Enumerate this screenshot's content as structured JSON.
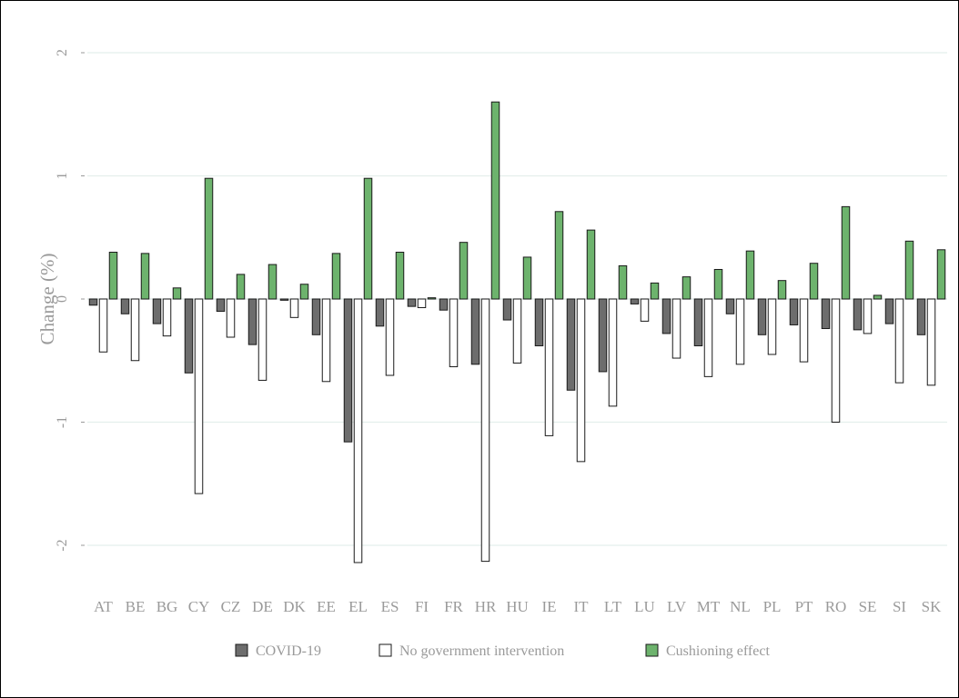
{
  "chart_data": {
    "type": "bar",
    "ylabel": "Change (%)",
    "ylim": [
      -2.3,
      2.0
    ],
    "yticks": [
      2,
      1,
      0,
      -1,
      -2
    ],
    "grid": true,
    "legend_position": "bottom",
    "categories": [
      "AT",
      "BE",
      "BG",
      "CY",
      "CZ",
      "DE",
      "DK",
      "EE",
      "EL",
      "ES",
      "FI",
      "FR",
      "HR",
      "HU",
      "IE",
      "IT",
      "LT",
      "LU",
      "LV",
      "MT",
      "NL",
      "PL",
      "PT",
      "RO",
      "SE",
      "SI",
      "SK"
    ],
    "series": [
      {
        "name": "COVID-19",
        "color": "#6d6d6d",
        "values": [
          -0.05,
          -0.12,
          -0.2,
          -0.6,
          -0.1,
          -0.37,
          -0.01,
          -0.29,
          -1.16,
          -0.22,
          -0.06,
          -0.09,
          -0.53,
          -0.17,
          -0.38,
          -0.74,
          -0.59,
          -0.04,
          -0.28,
          -0.38,
          -0.12,
          -0.29,
          -0.21,
          -0.24,
          -0.25,
          -0.2,
          -0.29
        ]
      },
      {
        "name": "No government intervention",
        "color": "#ffffff",
        "values": [
          -0.43,
          -0.5,
          -0.3,
          -1.58,
          -0.31,
          -0.66,
          -0.15,
          -0.67,
          -2.14,
          -0.62,
          -0.07,
          -0.55,
          -2.13,
          -0.52,
          -1.11,
          -1.32,
          -0.87,
          -0.18,
          -0.48,
          -0.63,
          -0.53,
          -0.45,
          -0.51,
          -1.0,
          -0.28,
          -0.68,
          -0.7
        ]
      },
      {
        "name": "Cushioning effect",
        "color": "#6db36d",
        "values": [
          0.38,
          0.37,
          0.09,
          0.98,
          0.2,
          0.28,
          0.12,
          0.37,
          0.98,
          0.38,
          0.01,
          0.46,
          1.6,
          0.34,
          0.71,
          0.56,
          0.27,
          0.13,
          0.18,
          0.24,
          0.39,
          0.15,
          0.29,
          0.75,
          0.03,
          0.47,
          0.4
        ]
      }
    ]
  }
}
